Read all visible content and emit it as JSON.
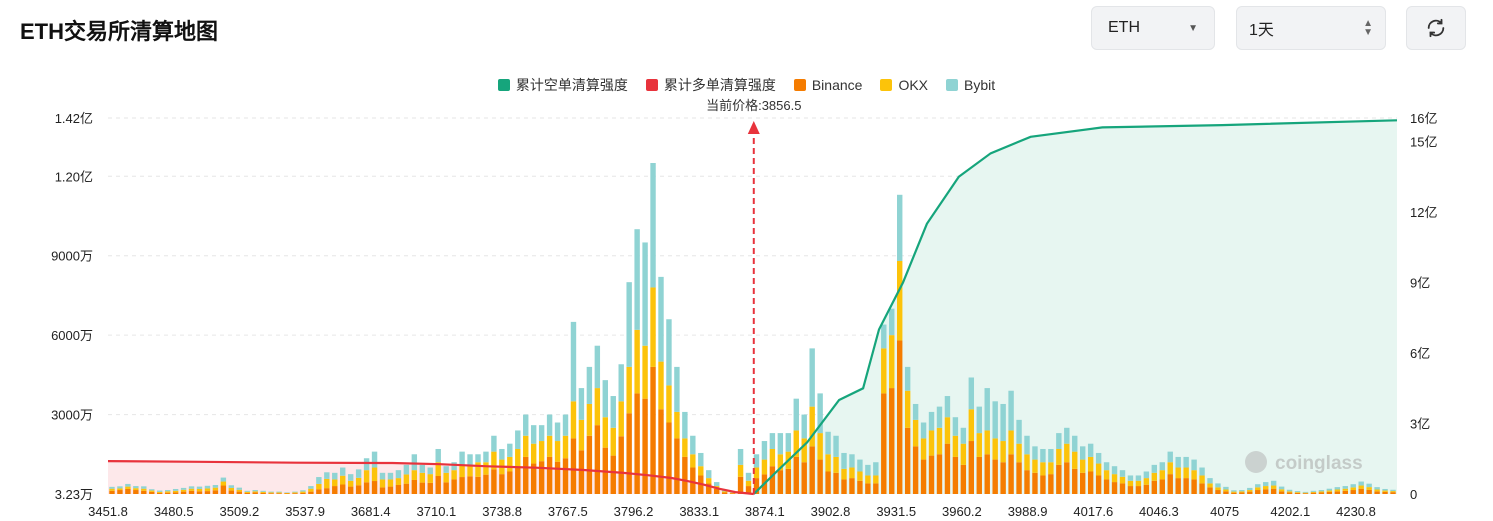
{
  "header": {
    "title": "ETH交易所清算地图",
    "symbol_value": "ETH",
    "period_value": "1天"
  },
  "watermark": "coinglass",
  "colors": {
    "short_cum": "#16a57c",
    "long_cum": "#e8333c",
    "binance": "#f57c00",
    "okx": "#fcc30a",
    "bybit": "#8fd3d3",
    "long_fill": "#fde8ea",
    "short_fill": "#e7f6f1"
  },
  "chart_data": {
    "type": "bar",
    "legend": [
      {
        "name": "累计空单清算强度",
        "color": "#16a57c"
      },
      {
        "name": "累计多单清算强度",
        "color": "#e8333c"
      },
      {
        "name": "Binance",
        "color": "#f57c00"
      },
      {
        "name": "OKX",
        "color": "#fcc30a"
      },
      {
        "name": "Bybit",
        "color": "#8fd3d3"
      }
    ],
    "current_price_label": "当前价格:3856.5",
    "current_price": 3856.5,
    "left_axis": {
      "labels": [
        "3.23万",
        "3000万",
        "6000万",
        "9000万",
        "1.20亿",
        "1.42亿"
      ],
      "values": [
        32300,
        30000000,
        60000000,
        90000000,
        120000000,
        142000000
      ]
    },
    "right_axis": {
      "labels": [
        "0",
        "3亿",
        "6亿",
        "9亿",
        "12亿",
        "15亿",
        "16亿"
      ],
      "values": [
        0,
        300000000,
        600000000,
        900000000,
        1200000000,
        1500000000,
        1600000000
      ]
    },
    "x_tick_labels": [
      "3451.8",
      "3480.5",
      "3509.2",
      "3537.9",
      "3681.4",
      "3710.1",
      "3738.8",
      "3767.5",
      "3796.2",
      "3833.1",
      "3874.1",
      "3902.8",
      "3931.5",
      "3960.2",
      "3988.9",
      "4017.6",
      "4046.3",
      "4075",
      "4202.1",
      "4230.8"
    ],
    "binance": [
      1.2,
      1.5,
      1.9,
      1.5,
      1.2,
      0.8,
      0.4,
      0.5,
      0.6,
      0.9,
      1.2,
      1.0,
      1.1,
      1.4,
      3.2,
      1.3,
      0.9,
      0.4,
      0.6,
      0.4,
      0.3,
      0.3,
      0.2,
      0.3,
      0.4,
      0.9,
      1.8,
      2.2,
      3.0,
      3.6,
      2.8,
      3.3,
      4.4,
      4.9,
      2.5,
      2.8,
      3.4,
      3.9,
      5.3,
      4.3,
      4.2,
      6.8,
      4.4,
      5.5,
      6.4,
      6.7,
      6.5,
      7.3,
      9.3,
      7.5,
      8.5,
      10.0,
      14.0,
      11.5,
      12.4,
      14.0,
      12.2,
      13.5,
      21.0,
      16.5,
      22.0,
      26.0,
      17.5,
      14.5,
      21.8,
      30.5,
      38.0,
      36.0,
      48.0,
      32.0,
      27.0,
      21.0,
      14.0,
      10.0,
      7.0,
      4.0,
      2.0,
      0.6,
      0.3,
      6.5,
      3.0,
      6.0,
      7.4,
      10.5,
      9.0,
      9.5,
      14.0,
      12.0,
      18.0,
      13.0,
      8.5,
      8.0,
      5.5,
      6.0,
      5.0,
      4.0,
      4.0,
      38.0,
      40.0,
      58.0,
      25.0,
      18.0,
      13.0,
      14.5,
      15.0,
      19.0,
      14.0,
      11.0,
      20.0,
      14.0,
      15.0,
      13.0,
      12.0,
      15.0,
      12.0,
      9.0,
      8.0,
      7.0,
      7.5,
      11.0,
      12.0,
      9.5,
      8.0,
      8.5,
      7.0,
      5.5,
      4.5,
      4.0,
      3.0,
      3.0,
      3.5,
      5.0,
      5.5,
      7.5,
      6.0,
      6.0,
      5.5,
      4.0,
      2.5,
      1.5,
      1.0,
      0.5,
      0.6,
      0.9,
      1.5,
      1.8,
      2.0,
      1.0,
      0.6,
      0.4,
      0.3,
      0.5,
      0.6,
      0.8,
      1.0,
      1.2,
      1.5,
      2.0,
      1.6,
      1.0,
      0.8,
      0.7
    ],
    "okx": [
      0.8,
      0.6,
      0.9,
      0.7,
      0.8,
      0.5,
      0.4,
      0.5,
      0.6,
      0.7,
      0.8,
      0.9,
      1.0,
      1.0,
      1.5,
      1.0,
      0.7,
      0.4,
      0.4,
      0.4,
      0.3,
      0.3,
      0.2,
      0.3,
      0.5,
      1.1,
      2.0,
      3.5,
      2.5,
      3.3,
      2.2,
      2.8,
      4.6,
      5.1,
      3.0,
      2.7,
      2.6,
      3.5,
      3.7,
      3.7,
      3.3,
      5.2,
      3.6,
      3.5,
      4.6,
      4.3,
      5.5,
      4.7,
      6.7,
      5.5,
      5.5,
      7.0,
      8.0,
      7.5,
      7.6,
      8.0,
      7.8,
      8.5,
      14.0,
      11.5,
      12.0,
      14.0,
      11.5,
      10.5,
      13.2,
      17.5,
      24.0,
      20.0,
      30.0,
      18.0,
      14.0,
      10.0,
      7.0,
      5.0,
      3.5,
      2.0,
      1.0,
      0.4,
      0.2,
      4.5,
      2.0,
      4.0,
      5.6,
      6.5,
      6.0,
      6.5,
      10.0,
      9.0,
      15.0,
      10.0,
      6.5,
      6.0,
      4.0,
      4.0,
      3.5,
      3.0,
      3.0,
      17.0,
      20.0,
      30.0,
      14.0,
      10.0,
      8.0,
      9.5,
      10.0,
      10.0,
      8.0,
      8.0,
      12.0,
      9.0,
      9.0,
      8.0,
      8.0,
      9.0,
      7.0,
      6.0,
      5.0,
      5.0,
      4.5,
      6.0,
      7.0,
      6.5,
      5.0,
      5.5,
      4.5,
      3.5,
      3.0,
      2.5,
      2.0,
      2.0,
      2.5,
      3.0,
      3.5,
      4.5,
      4.0,
      4.0,
      3.5,
      3.0,
      1.5,
      1.0,
      0.7,
      0.4,
      0.4,
      0.6,
      1.0,
      1.2,
      1.2,
      0.8,
      0.4,
      0.3,
      0.2,
      0.3,
      0.4,
      0.5,
      0.7,
      0.8,
      1.0,
      1.2,
      1.0,
      0.7,
      0.5,
      0.4
    ],
    "bybit": [
      0.7,
      0.8,
      1.0,
      0.8,
      0.9,
      0.5,
      0.5,
      0.5,
      0.7,
      0.7,
      0.9,
      0.9,
      1.0,
      1.0,
      1.5,
      1.0,
      0.8,
      0.4,
      0.5,
      0.4,
      0.3,
      0.3,
      0.2,
      0.3,
      0.5,
      1.0,
      2.6,
      2.5,
      2.5,
      3.1,
      2.5,
      3.2,
      4.5,
      6.0,
      2.5,
      2.5,
      3.0,
      3.6,
      6.0,
      3.0,
      2.5,
      5.0,
      2.5,
      3.0,
      5.0,
      4.0,
      3.0,
      4.0,
      6.0,
      4.0,
      5.0,
      7.0,
      8.0,
      7.0,
      6.0,
      8.0,
      7.0,
      8.0,
      30.0,
      12.0,
      14.0,
      16.0,
      14.0,
      12.0,
      14.0,
      32.0,
      38.0,
      39.0,
      47.0,
      32.0,
      25.0,
      17.0,
      10.0,
      7.0,
      5.0,
      3.0,
      1.5,
      0.4,
      0.2,
      6.0,
      3.0,
      5.0,
      7.0,
      6.0,
      8.0,
      7.0,
      12.0,
      9.0,
      22.0,
      15.0,
      8.5,
      8.0,
      6.0,
      5.0,
      4.5,
      4.0,
      5.0,
      9.0,
      10.0,
      25.0,
      9.0,
      6.0,
      6.0,
      7.0,
      8.0,
      8.0,
      7.0,
      6.0,
      12.0,
      10.0,
      16.0,
      14.0,
      14.0,
      15.0,
      9.0,
      7.0,
      5.0,
      5.0,
      5.0,
      6.0,
      6.0,
      6.0,
      5.0,
      5.0,
      4.0,
      3.0,
      3.0,
      2.5,
      2.0,
      2.0,
      2.5,
      3.0,
      3.0,
      4.0,
      4.0,
      4.0,
      4.0,
      3.0,
      2.0,
      1.5,
      1.0,
      0.5,
      0.5,
      0.8,
      1.2,
      1.5,
      1.8,
      1.0,
      0.6,
      0.4,
      0.3,
      0.4,
      0.5,
      0.7,
      0.9,
      1.0,
      1.2,
      1.5,
      1.3,
      0.9,
      0.6,
      0.5
    ],
    "long_cum_curve": [
      [
        3451.8,
        1.4
      ],
      [
        3509.2,
        1.37
      ],
      [
        3570,
        1.33
      ],
      [
        3630,
        1.32
      ],
      [
        3660,
        1.27
      ],
      [
        3690,
        1.18
      ],
      [
        3720,
        1.12
      ],
      [
        3750,
        1.02
      ],
      [
        3775,
        0.9
      ],
      [
        3790,
        0.8
      ],
      [
        3805,
        0.68
      ],
      [
        3815,
        0.55
      ],
      [
        3825,
        0.4
      ],
      [
        3835,
        0.22
      ],
      [
        3845,
        0.08
      ],
      [
        3856.5,
        0.0
      ]
    ],
    "short_cum_curve": [
      [
        3856.5,
        0.0
      ],
      [
        3870,
        0.9
      ],
      [
        3890,
        2.2
      ],
      [
        3910,
        4.0
      ],
      [
        3925,
        4.5
      ],
      [
        3935,
        7.0
      ],
      [
        3950,
        9.0
      ],
      [
        3965,
        11.5
      ],
      [
        3985,
        13.5
      ],
      [
        4005,
        14.5
      ],
      [
        4030,
        15.2
      ],
      [
        4075,
        15.6
      ],
      [
        4150,
        15.7
      ],
      [
        4259.6,
        15.9
      ]
    ]
  }
}
